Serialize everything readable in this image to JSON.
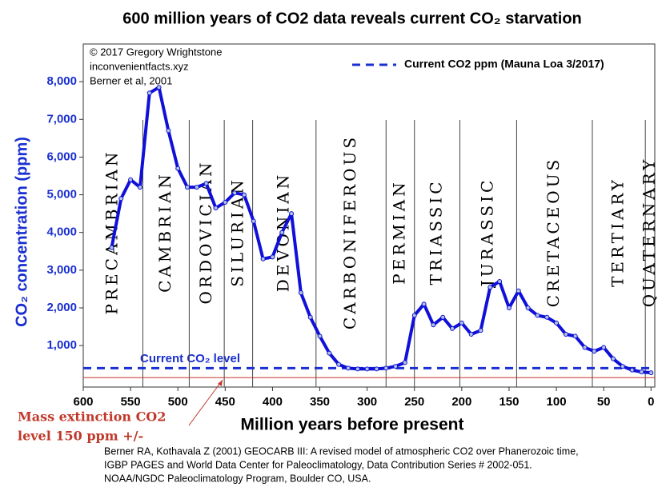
{
  "chart_data": {
    "type": "line",
    "title": "600 million years of CO2 data reveals current CO₂ starvation",
    "credits": [
      "© 2017 Gregory Wrightstone",
      "inconvenientfacts.xyz",
      "Berner et al, 2001"
    ],
    "ylabel": "CO₂ concentration (ppm)",
    "xlabel": "Million years before present",
    "xlim": [
      600,
      -4
    ],
    "ylim": [
      -100,
      9000
    ],
    "xticks": [
      600,
      550,
      500,
      450,
      400,
      350,
      300,
      250,
      200,
      150,
      100,
      50,
      0
    ],
    "yticks": [
      {
        "value": 1000,
        "label": "1,000"
      },
      {
        "value": 2000,
        "label": "2,000"
      },
      {
        "value": 3000,
        "label": "3,000"
      },
      {
        "value": 4000,
        "label": "4,000"
      },
      {
        "value": 5000,
        "label": "5,000"
      },
      {
        "value": 6000,
        "label": "6,000"
      },
      {
        "value": 7000,
        "label": "7,000"
      },
      {
        "value": 8000,
        "label": "8,000"
      }
    ],
    "series": [
      {
        "color": "#1010d8",
        "x": [
          570,
          560,
          550,
          540,
          530,
          520,
          510,
          500,
          490,
          480,
          470,
          460,
          450,
          440,
          430,
          420,
          410,
          400,
          390,
          380,
          370,
          360,
          350,
          340,
          330,
          320,
          310,
          300,
          290,
          280,
          270,
          260,
          250,
          240,
          230,
          220,
          210,
          200,
          190,
          180,
          170,
          160,
          150,
          140,
          130,
          120,
          110,
          100,
          90,
          80,
          70,
          60,
          50,
          40,
          30,
          20,
          10,
          0
        ],
        "values": [
          3600,
          4900,
          5400,
          5200,
          7700,
          7850,
          6700,
          5700,
          5200,
          5200,
          5300,
          4650,
          4800,
          5050,
          5000,
          4300,
          3300,
          3350,
          4000,
          4500,
          2400,
          1750,
          1250,
          800,
          500,
          400,
          380,
          380,
          380,
          400,
          450,
          550,
          1800,
          2100,
          1550,
          1750,
          1450,
          1600,
          1300,
          1400,
          2550,
          2700,
          2000,
          2450,
          2000,
          1800,
          1750,
          1600,
          1300,
          1250,
          950,
          850,
          950,
          650,
          450,
          350,
          300,
          280
        ]
      }
    ],
    "periods": [
      "PRECAMBRIAN",
      "CAMBRIAN",
      "ORDOVICIAN",
      "SILURIAN",
      "DEVONIAN",
      "CARBONIFEROUS",
      "PERMIAN",
      "TRIASSIC",
      "JURASSIC",
      "CRETACEOUS",
      "TERTIARY",
      "QUATERNARY"
    ],
    "period_boundaries": [
      537,
      488,
      451,
      421,
      354,
      280,
      250,
      202,
      142,
      62,
      6
    ],
    "reference_lines": [
      {
        "label": "Current CO₂ level",
        "legend": "Current CO2 ppm (Mauna Loa 3/2017)",
        "value": 400,
        "color": "#1a2fd0"
      },
      {
        "value": 150,
        "color": "#c0392b"
      }
    ],
    "annotation": [
      "Mass extinction CO2",
      "level 150 ppm +/-"
    ],
    "source": [
      "Berner RA, Kothavala Z (2001) GEOCARB III: A revised model of atmospheric CO2 over Phanerozoic time,",
      "IGBP PAGES and World Data Center for Paleoclimatology, Data Contribution Series # 2002-051.",
      "NOAA/NGDC Paleoclimatology Program, Boulder CO, USA."
    ]
  }
}
